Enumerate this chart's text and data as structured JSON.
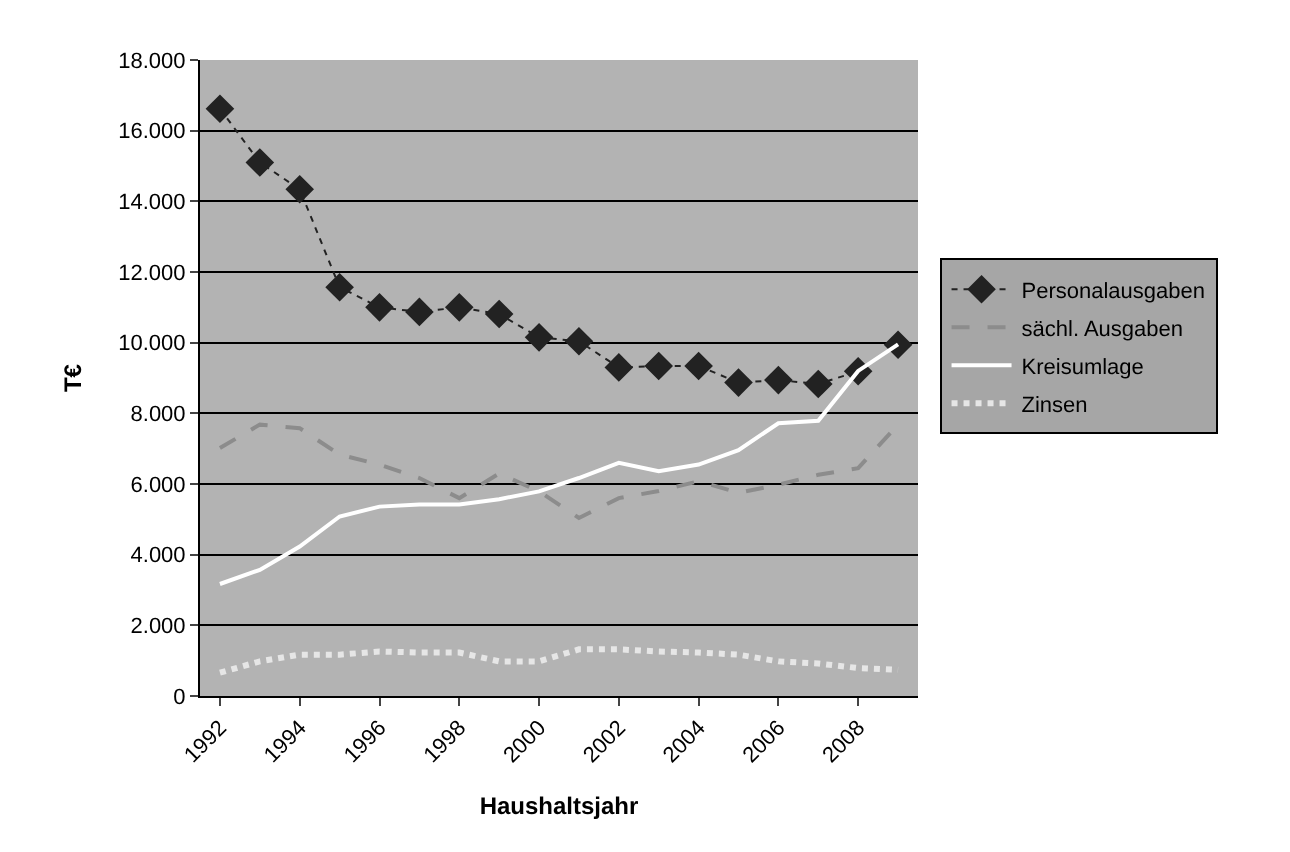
{
  "chart_data": {
    "type": "line",
    "xlabel": "Haushaltsjahr",
    "ylabel": "T€",
    "categories": [
      "1992",
      null,
      "1994",
      null,
      "1996",
      null,
      "1998",
      null,
      "2000",
      null,
      "2002",
      null,
      "2004",
      null,
      "2006",
      null,
      "2008",
      null
    ],
    "series": [
      {
        "name": "Personalausgaben",
        "color": "#222222",
        "marker": "diamond",
        "line_style": "dotted",
        "values": [
          16620,
          15100,
          14340,
          11570,
          11000,
          10870,
          11000,
          10810,
          10150,
          10040,
          9300,
          9340,
          9340,
          8870,
          8940,
          8830,
          9190,
          9940
        ]
      },
      {
        "name": "sächl. Ausgaben",
        "color": "#8c8c8c",
        "marker": "none",
        "line_style": "dashed",
        "values": [
          7020,
          7680,
          7580,
          6830,
          6550,
          6170,
          5600,
          6300,
          5790,
          5040,
          5600,
          5800,
          6080,
          5750,
          5980,
          6260,
          6450,
          7680
        ]
      },
      {
        "name": "Kreisumlage",
        "color": "#ffffff",
        "marker": "none",
        "line_style": "solid",
        "values": [
          3170,
          3570,
          4230,
          5080,
          5360,
          5420,
          5420,
          5570,
          5790,
          6170,
          6600,
          6360,
          6550,
          6960,
          7720,
          7790,
          9200,
          9950
        ]
      },
      {
        "name": "Zinsen",
        "color": "#e6e6e6",
        "marker": "none",
        "line_style": "dotted",
        "values": [
          660,
          980,
          1170,
          1170,
          1260,
          1230,
          1230,
          980,
          980,
          1320,
          1320,
          1260,
          1230,
          1170,
          980,
          920,
          790,
          740
        ]
      }
    ],
    "ylim": [
      0,
      18000
    ],
    "yticks": [
      {
        "value": 0,
        "label": "0"
      },
      {
        "value": 2000,
        "label": "2.000"
      },
      {
        "value": 4000,
        "label": "4.000"
      },
      {
        "value": 6000,
        "label": "6.000"
      },
      {
        "value": 8000,
        "label": "8.000"
      },
      {
        "value": 10000,
        "label": "10.000"
      },
      {
        "value": 12000,
        "label": "12.000"
      },
      {
        "value": 14000,
        "label": "14.000"
      },
      {
        "value": 16000,
        "label": "16.000"
      },
      {
        "value": 18000,
        "label": "18.000"
      }
    ],
    "grid": "y",
    "legend": "right"
  }
}
